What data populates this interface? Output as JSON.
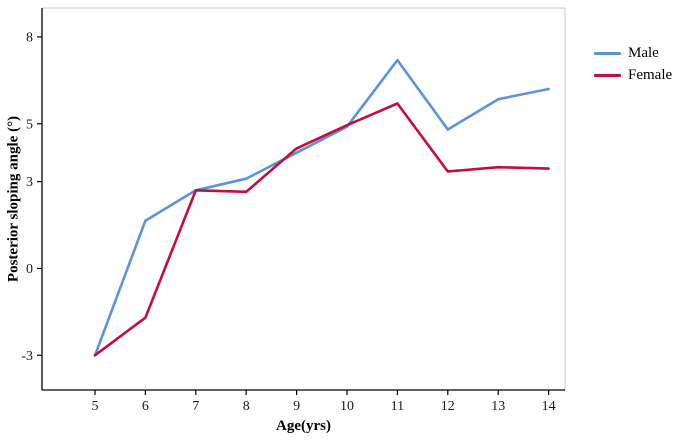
{
  "chart_data": {
    "type": "line",
    "title": "",
    "xlabel": "Age(yrs)",
    "ylabel": "Posterior sloping angle (°)",
    "x": [
      5,
      6,
      7,
      8,
      9,
      10,
      11,
      12,
      13,
      14
    ],
    "series": [
      {
        "name": "Male",
        "color": "#5b94d8",
        "values": [
          -3.0,
          1.65,
          2.7,
          3.1,
          4.0,
          4.9,
          7.2,
          4.8,
          5.85,
          6.2
        ]
      },
      {
        "name": "Female",
        "color": "#c40d3e",
        "values": [
          -3.0,
          -1.7,
          2.7,
          2.65,
          4.15,
          4.95,
          5.7,
          3.35,
          3.5,
          3.45
        ]
      }
    ],
    "y_ticks": [
      -3,
      0,
      3,
      5,
      8
    ],
    "ylim": [
      -4.2,
      9
    ],
    "grid": false,
    "legend_position": "top-right",
    "axis_color": "#000000",
    "frame_color": "#c9c9c9",
    "line_width": 2.6
  }
}
